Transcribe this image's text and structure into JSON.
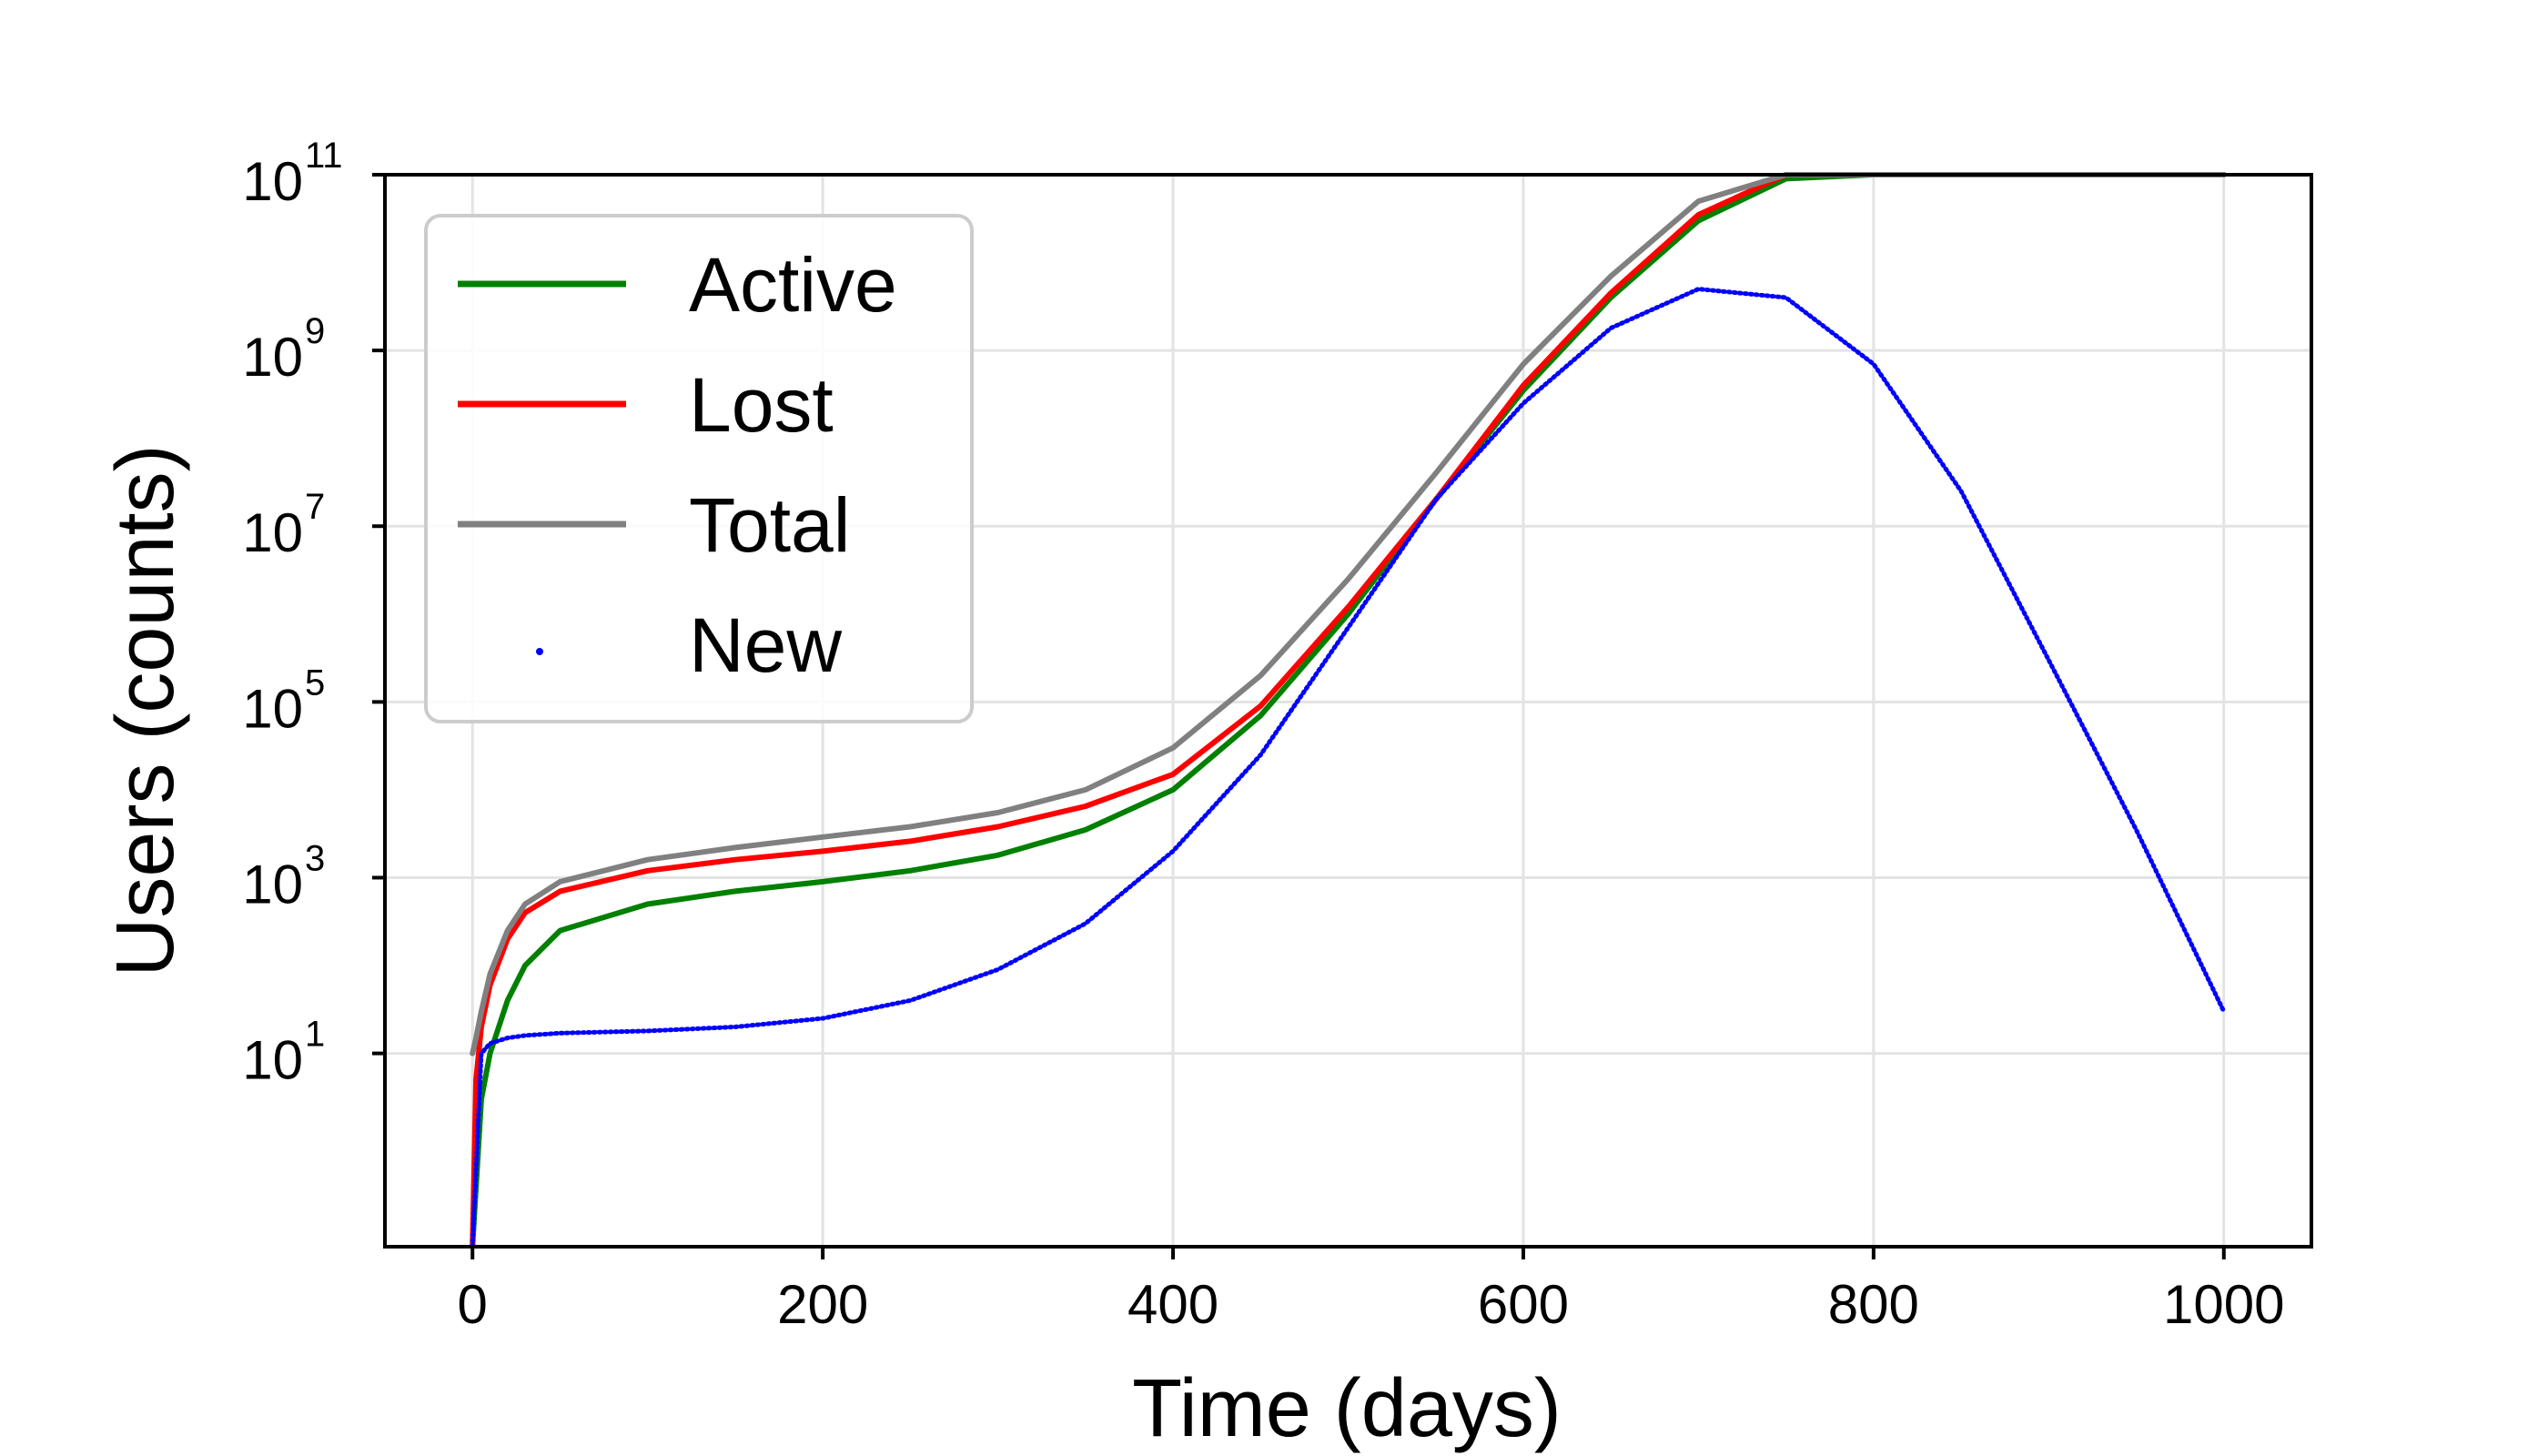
{
  "chart_data": {
    "type": "line",
    "title": "",
    "xlabel": "Time (days)",
    "ylabel": "Users (counts)",
    "xlim": [
      -50,
      1050
    ],
    "ylim_log10": [
      -1.2,
      11.0
    ],
    "y_scale": "log",
    "grid": true,
    "legend_position": "top-left",
    "x_ticks": [
      0,
      200,
      400,
      600,
      800,
      1000
    ],
    "y_ticks_exponents": [
      1,
      3,
      5,
      7,
      9,
      11
    ],
    "y_tick_base": "10",
    "series": [
      {
        "name": "Active",
        "color": "#008000",
        "style": "line",
        "x": [
          0,
          5,
          10,
          20,
          30,
          50,
          100,
          150,
          200,
          250,
          300,
          350,
          400,
          450,
          500,
          550,
          600,
          650,
          700,
          750,
          800,
          850,
          900,
          950,
          1000
        ],
        "y": [
          0,
          3,
          10,
          40,
          100,
          250,
          500,
          700,
          900,
          1200,
          1800,
          3500,
          10000,
          70000,
          1000000,
          20000000,
          350000000,
          4000000000,
          30000000000,
          90000000000,
          120000000000,
          125000000000,
          125000000000,
          125000000000,
          125000000000
        ]
      },
      {
        "name": "Lost",
        "color": "#ff0000",
        "style": "line",
        "x": [
          0,
          2,
          5,
          10,
          20,
          30,
          50,
          100,
          150,
          200,
          250,
          300,
          350,
          400,
          450,
          500,
          550,
          600,
          650,
          700,
          750,
          800,
          850,
          900,
          950,
          1000
        ],
        "y": [
          0,
          5,
          20,
          60,
          200,
          400,
          700,
          1200,
          1600,
          2000,
          2600,
          3800,
          6500,
          15000,
          90000,
          1200000,
          20000000,
          400000000,
          4500000000,
          35000000000,
          100000000000,
          125000000000,
          130000000000,
          130000000000,
          130000000000,
          130000000000
        ]
      },
      {
        "name": "Total",
        "color": "#808080",
        "style": "line",
        "x": [
          0,
          2,
          5,
          10,
          20,
          30,
          50,
          100,
          150,
          200,
          250,
          300,
          350,
          400,
          450,
          500,
          550,
          600,
          650,
          700,
          750,
          800,
          850,
          900,
          950,
          1000
        ],
        "y": [
          10,
          15,
          30,
          80,
          250,
          500,
          900,
          1600,
          2200,
          2900,
          3800,
          5500,
          10000,
          30000,
          200000,
          2500000,
          40000000,
          700000000,
          7000000000,
          50000000000,
          150000000000,
          210000000000,
          220000000000,
          220000000000,
          220000000000,
          220000000000
        ]
      },
      {
        "name": "New",
        "color": "#0000ff",
        "style": "dots",
        "x": [
          0,
          5,
          10,
          20,
          30,
          50,
          100,
          150,
          200,
          250,
          300,
          350,
          400,
          450,
          500,
          550,
          600,
          650,
          700,
          750,
          800,
          850,
          900,
          950,
          1000
        ],
        "y": [
          0,
          10,
          13,
          15,
          16,
          17,
          18,
          20,
          25,
          40,
          90,
          300,
          2000,
          25000,
          700000,
          20000000,
          250000000,
          1800000000,
          5000000000,
          4000000000,
          700000000,
          25000000,
          300000,
          3500,
          30
        ]
      }
    ]
  }
}
